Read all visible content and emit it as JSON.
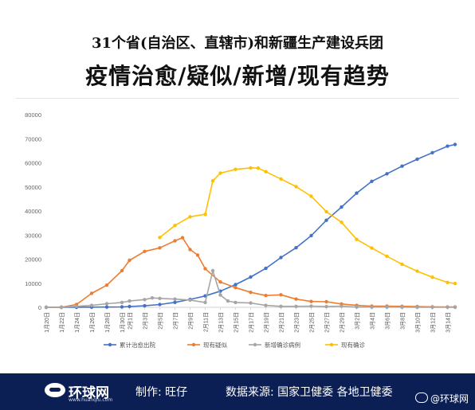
{
  "header": {
    "line1": "31个省(自治区、直辖市)和新疆生产建设兵团",
    "line2": "疫情治愈/疑似/新增/现有趋势"
  },
  "footer": {
    "logo_text": "环球网",
    "logo_domain": "www.huanqiu.com",
    "credit": "制作: 旺仔",
    "source": "数据来源: 国家卫健委 各地卫健委",
    "watermark": "@环球网"
  },
  "chart_data": {
    "type": "line",
    "title": "",
    "xlabel": "",
    "ylabel": "",
    "ylim": [
      0,
      80000
    ],
    "yticks": [
      0,
      10000,
      20000,
      30000,
      40000,
      50000,
      60000,
      70000,
      80000
    ],
    "grid": false,
    "legend_position": "bottom",
    "x_range": [
      "1月20日",
      "3月15日"
    ],
    "x_ticks": [
      "1月20日",
      "1月22日",
      "1月24日",
      "1月26日",
      "1月28日",
      "1月30日",
      "2月1日",
      "2月3日",
      "2月5日",
      "2月7日",
      "2月9日",
      "2月11日",
      "2月13日",
      "2月15日",
      "2月17日",
      "2月19日",
      "2月21日",
      "2月23日",
      "2月25日",
      "2月27日",
      "2月29日",
      "3月2日",
      "3月4日",
      "3月6日",
      "3月8日",
      "3月10日",
      "3月12日",
      "3月14日"
    ],
    "series": [
      {
        "name": "累计治愈出院",
        "color": "#4472c4",
        "x": [
          "1月20日",
          "1月22日",
          "1月24日",
          "1月26日",
          "1月28日",
          "1月30日",
          "2月1日",
          "2月3日",
          "2月5日",
          "2月7日",
          "2月9日",
          "2月11日",
          "2月13日",
          "2月15日",
          "2月17日",
          "2月19日",
          "2月21日",
          "2月23日",
          "2月25日",
          "2月27日",
          "2月29日",
          "3月2日",
          "3月4日",
          "3月6日",
          "3月8日",
          "3月10日",
          "3月12日",
          "3月14日",
          "3月15日"
        ],
        "values": [
          0,
          0,
          30,
          50,
          100,
          170,
          330,
          630,
          1150,
          2050,
          3280,
          4740,
          6720,
          9420,
          12550,
          16160,
          20660,
          24730,
          29750,
          36120,
          41630,
          47400,
          52290,
          55430,
          58600,
          61500,
          64200,
          66900,
          67600
        ]
      },
      {
        "name": "现有疑似",
        "color": "#ed7d31",
        "x": [
          "1月20日",
          "1月22日",
          "1月24日",
          "1月26日",
          "1月28日",
          "1月30日",
          "2月1日",
          "2月3日",
          "2月5日",
          "2月7日",
          "2月8日",
          "2月9日",
          "2月10日",
          "2月11日",
          "2月13日",
          "2月15日",
          "2月17日",
          "2月19日",
          "2月21日",
          "2月23日",
          "2月25日",
          "2月27日",
          "2月29日",
          "3月2日",
          "3月4日",
          "3月6日",
          "3月8日",
          "3月10日",
          "3月12日",
          "3月14日",
          "3月15日"
        ],
        "values": [
          0,
          0,
          1200,
          5800,
          9200,
          15200,
          19500,
          23200,
          24700,
          27600,
          28900,
          24000,
          21700,
          16000,
          10500,
          8200,
          6200,
          4900,
          5200,
          3400,
          2400,
          2300,
          1400,
          800,
          500,
          500,
          400,
          300,
          200,
          130,
          130
        ]
      },
      {
        "name": "新增确诊病例",
        "color": "#a5a5a5",
        "x": [
          "1月20日",
          "1月22日",
          "1月24日",
          "1月26日",
          "1月28日",
          "1月30日",
          "2月1日",
          "2月3日",
          "2月4日",
          "2月5日",
          "2月7日",
          "2月9日",
          "2月11日",
          "2月12日",
          "2月13日",
          "2月14日",
          "2月15日",
          "2月17日",
          "2月19日",
          "2月21日",
          "2月23日",
          "2月25日",
          "2月27日",
          "2月29日",
          "3月2日",
          "3月4日",
          "3月6日",
          "3月8日",
          "3月10日",
          "3月12日",
          "3月14日",
          "3月15日"
        ],
        "values": [
          0,
          100,
          400,
          800,
          1500,
          2000,
          2600,
          3200,
          3900,
          3700,
          3400,
          3000,
          2000,
          15200,
          5100,
          2600,
          2000,
          1800,
          800,
          400,
          400,
          500,
          300,
          500,
          100,
          100,
          100,
          50,
          30,
          10,
          20,
          10
        ]
      },
      {
        "name": "现有确诊",
        "color": "#ffc000",
        "x": [
          "2月5日",
          "2月7日",
          "2月9日",
          "2月11日",
          "2月12日",
          "2月13日",
          "2月15日",
          "2月17日",
          "2月18日",
          "2月19日",
          "2月21日",
          "2月23日",
          "2月25日",
          "2月27日",
          "2月29日",
          "3月2日",
          "3月4日",
          "3月6日",
          "3月8日",
          "3月10日",
          "3月12日",
          "3月14日",
          "3月15日"
        ],
        "values": [
          29000,
          34000,
          37600,
          38600,
          52500,
          55700,
          57300,
          57900,
          57800,
          56300,
          53300,
          50100,
          46100,
          39700,
          35300,
          28200,
          24600,
          21200,
          17900,
          15000,
          12500,
          10300,
          9900
        ]
      }
    ]
  }
}
